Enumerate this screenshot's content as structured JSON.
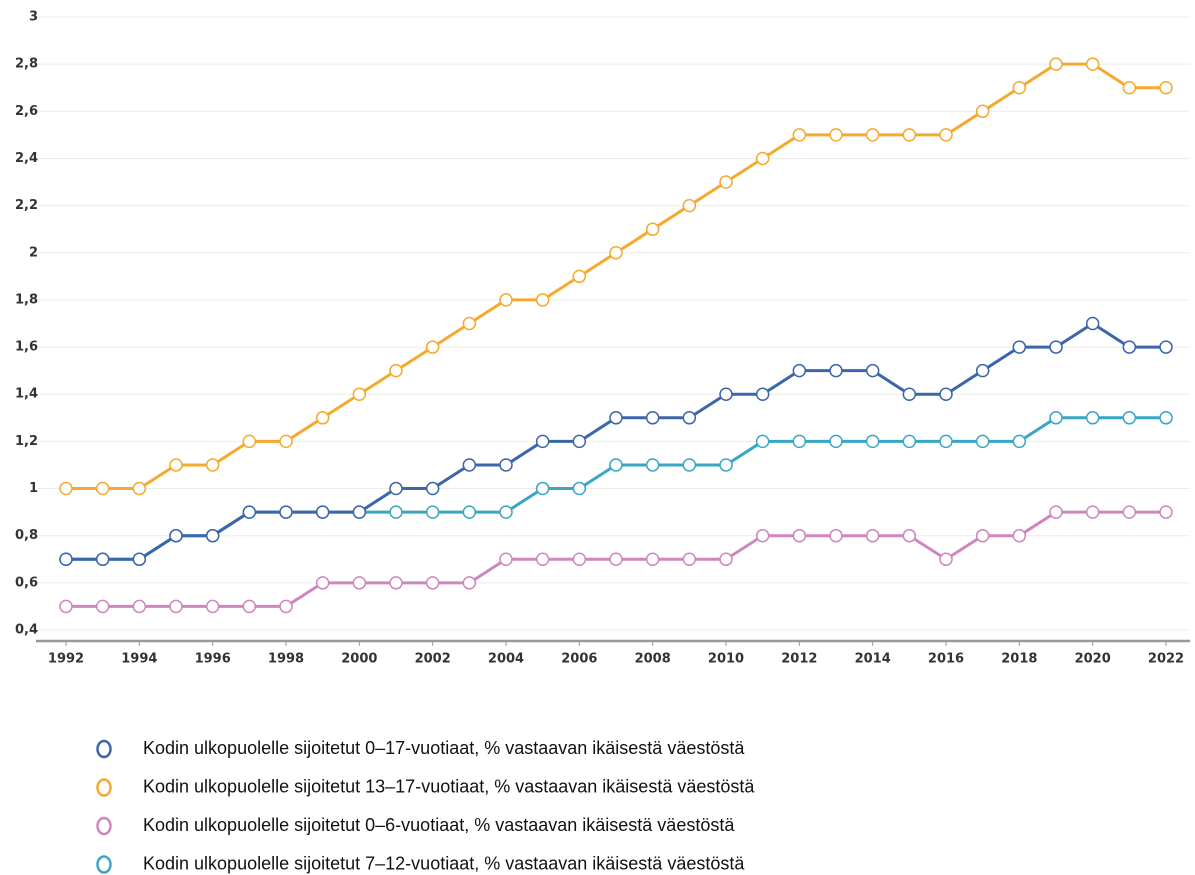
{
  "chart_data": {
    "type": "line",
    "x": [
      1992,
      1993,
      1994,
      1995,
      1996,
      1997,
      1998,
      1999,
      2000,
      2001,
      2002,
      2003,
      2004,
      2005,
      2006,
      2007,
      2008,
      2009,
      2010,
      2011,
      2012,
      2013,
      2014,
      2015,
      2016,
      2017,
      2018,
      2019,
      2020,
      2021,
      2022
    ],
    "series": [
      {
        "name": "Kodin ulkopuolelle sijoitetut 0–17-vuotiaat, % vastaavan ikäisestä väestöstä",
        "color": "#3c66a8",
        "values": [
          0.7,
          0.7,
          0.7,
          0.8,
          0.8,
          0.9,
          0.9,
          0.9,
          0.9,
          1.0,
          1.0,
          1.1,
          1.1,
          1.2,
          1.2,
          1.3,
          1.3,
          1.3,
          1.4,
          1.4,
          1.5,
          1.5,
          1.5,
          1.4,
          1.4,
          1.5,
          1.6,
          1.6,
          1.7,
          1.6,
          1.6
        ]
      },
      {
        "name": "Kodin ulkopuolelle sijoitetut 13–17-vuotiaat, % vastaavan ikäisestä väestöstä",
        "color": "#f5a92e",
        "values": [
          1.0,
          1.0,
          1.0,
          1.1,
          1.1,
          1.2,
          1.2,
          1.3,
          1.4,
          1.5,
          1.6,
          1.7,
          1.8,
          1.8,
          1.9,
          2.0,
          2.1,
          2.2,
          2.3,
          2.4,
          2.5,
          2.5,
          2.5,
          2.5,
          2.5,
          2.6,
          2.7,
          2.8,
          2.8,
          2.7,
          2.7
        ]
      },
      {
        "name": "Kodin ulkopuolelle sijoitetut 0–6-vuotiaat, % vastaavan ikäisestä väestöstä",
        "color": "#cf86be",
        "values": [
          0.5,
          0.5,
          0.5,
          0.5,
          0.5,
          0.5,
          0.5,
          0.6,
          0.6,
          0.6,
          0.6,
          0.6,
          0.7,
          0.7,
          0.7,
          0.7,
          0.7,
          0.7,
          0.7,
          0.8,
          0.8,
          0.8,
          0.8,
          0.8,
          0.7,
          0.8,
          0.8,
          0.9,
          0.9,
          0.9,
          0.9
        ]
      },
      {
        "name": "Kodin ulkopuolelle sijoitetut 7–12-vuotiaat, % vastaavan ikäisestä väestöstä",
        "color": "#3aa6c4",
        "values": [
          0.7,
          0.7,
          0.7,
          0.8,
          0.8,
          0.9,
          0.9,
          0.9,
          0.9,
          0.9,
          0.9,
          0.9,
          0.9,
          1.0,
          1.0,
          1.1,
          1.1,
          1.1,
          1.1,
          1.2,
          1.2,
          1.2,
          1.2,
          1.2,
          1.2,
          1.2,
          1.2,
          1.3,
          1.3,
          1.3,
          1.3
        ]
      }
    ],
    "xlim": [
      1992,
      2022
    ],
    "xticks": [
      1992,
      1994,
      1996,
      1998,
      2000,
      2002,
      2004,
      2006,
      2008,
      2010,
      2012,
      2014,
      2016,
      2018,
      2020,
      2022
    ],
    "ylim": [
      0.4,
      3
    ],
    "yticks": [
      {
        "value": 0.4,
        "label": "0,4"
      },
      {
        "value": 0.6,
        "label": "0,6"
      },
      {
        "value": 0.8,
        "label": "0,8"
      },
      1,
      {
        "value": 1.2,
        "label": "1,2"
      },
      {
        "value": 1.4,
        "label": "1,4"
      },
      {
        "value": 1.6,
        "label": "1,6"
      },
      {
        "value": 1.8,
        "label": "1,8"
      },
      2,
      {
        "value": 2.2,
        "label": "2,2"
      },
      {
        "value": 2.4,
        "label": "2,4"
      },
      {
        "value": 2.6,
        "label": "2,6"
      },
      {
        "value": 2.8,
        "label": "2,8"
      },
      3
    ],
    "grid": true
  }
}
